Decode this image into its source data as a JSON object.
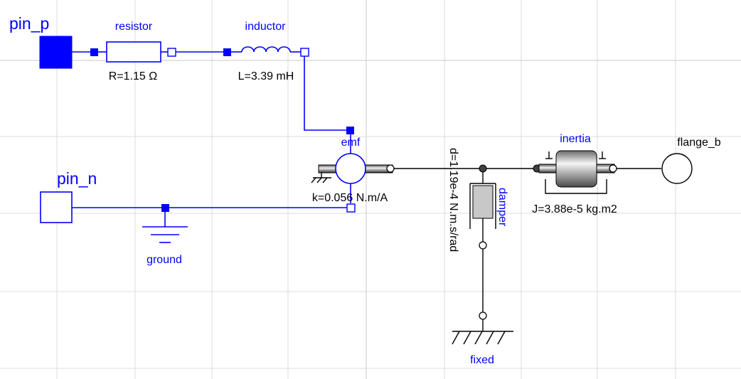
{
  "diagram": {
    "background": "#ffffff",
    "grid_color": "#dcdcdc",
    "electrical_color": "#0000ff",
    "mechanical_color": "#000000",
    "components": {
      "pin_p": {
        "name": "pin_p"
      },
      "pin_n": {
        "name": "pin_n"
      },
      "resistor": {
        "name": "resistor",
        "param": "R=1.15 Ω"
      },
      "inductor": {
        "name": "inductor",
        "param": "L=3.39 mH"
      },
      "emf": {
        "name": "emf",
        "param": "k=0.056 N.m/A"
      },
      "ground": {
        "name": "ground"
      },
      "damper": {
        "name": "damper",
        "param": "d=1.19e-4 N.m.s/rad"
      },
      "inertia": {
        "name": "inertia",
        "param": "J=3.88e-5 kg.m2"
      },
      "fixed": {
        "name": "fixed"
      },
      "flange_b": {
        "name": "flange_b"
      }
    }
  }
}
